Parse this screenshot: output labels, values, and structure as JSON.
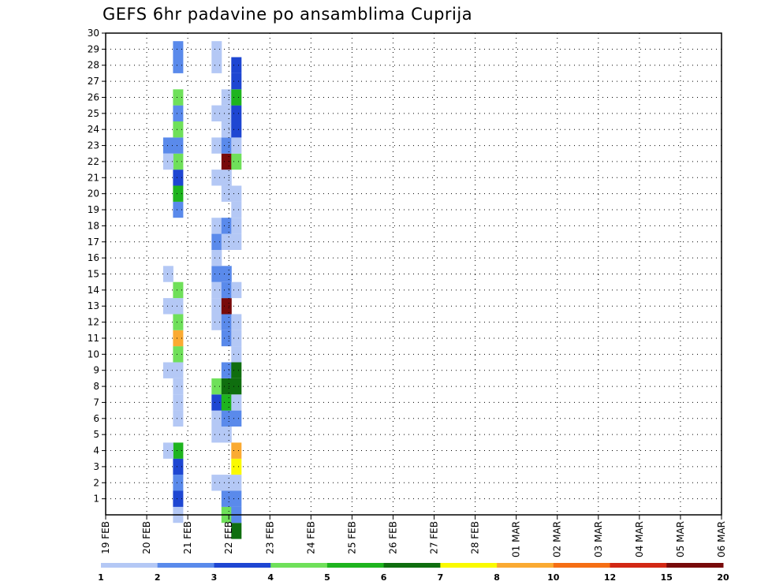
{
  "chart_data": {
    "type": "heatmap",
    "title": "GEFS 6hr padavine po ansamblima Cuprija",
    "x_tick_labels": [
      "19 FEB",
      "20 FEB",
      "21 FEB",
      "22 FEB",
      "23 FEB",
      "24 FEB",
      "25 FEB",
      "26 FEB",
      "27 FEB",
      "28 FEB",
      "01 MAR",
      "02 MAR",
      "03 MAR",
      "04 MAR",
      "05 MAR",
      "06 MAR"
    ],
    "y_tick_labels": [
      "1",
      "2",
      "3",
      "4",
      "5",
      "6",
      "7",
      "8",
      "9",
      "10",
      "11",
      "12",
      "13",
      "14",
      "15",
      "16",
      "17",
      "18",
      "19",
      "20",
      "21",
      "22",
      "23",
      "24",
      "25",
      "26",
      "27",
      "28",
      "29",
      "30"
    ],
    "xlim_days": [
      0,
      15
    ],
    "ylim_members": [
      0,
      30
    ],
    "grid": true,
    "legend": {
      "placement": "bottom",
      "colors": [
        "#b4c8f5",
        "#5a8aeb",
        "#1e46d2",
        "#6fe05a",
        "#1eb41e",
        "#0f6e0f",
        "#fafa00",
        "#faaa32",
        "#f56e14",
        "#d22814",
        "#780a0a"
      ],
      "labels": [
        "1",
        "2",
        "3",
        "4",
        "5",
        "6",
        "7",
        "8",
        "10",
        "12",
        "15",
        "20"
      ]
    },
    "series": [
      {
        "day": 1.64,
        "cells": [
          [
            0,
            1
          ],
          [
            1,
            3
          ],
          [
            2,
            2
          ],
          [
            3,
            3
          ],
          [
            4,
            5
          ],
          [
            6,
            1
          ],
          [
            7,
            1
          ],
          [
            8,
            1
          ],
          [
            9,
            1
          ],
          [
            10,
            4
          ],
          [
            11,
            8
          ],
          [
            12,
            4
          ],
          [
            13,
            1
          ],
          [
            14,
            4
          ],
          [
            19,
            2
          ],
          [
            20,
            5
          ],
          [
            21,
            3
          ],
          [
            22,
            4
          ],
          [
            23,
            2
          ],
          [
            24,
            4
          ],
          [
            25,
            2
          ],
          [
            26,
            4
          ],
          [
            28,
            2
          ],
          [
            29,
            2
          ]
        ]
      },
      {
        "day": 1.4,
        "cells": [
          [
            4,
            1
          ],
          [
            9,
            1
          ],
          [
            13,
            1
          ],
          [
            15,
            1
          ]
        ]
      },
      {
        "day": 1.4,
        "cells": [
          [
            23,
            2
          ],
          [
            22,
            1
          ]
        ]
      },
      {
        "day": 2.58,
        "cells": [
          [
            2,
            1
          ],
          [
            5,
            1
          ],
          [
            6,
            1
          ],
          [
            7,
            3
          ],
          [
            8,
            4
          ],
          [
            12,
            1
          ],
          [
            13,
            1
          ],
          [
            14,
            1
          ],
          [
            15,
            2
          ],
          [
            16,
            1
          ],
          [
            18,
            1
          ],
          [
            21,
            1
          ],
          [
            23,
            1
          ],
          [
            25,
            1
          ],
          [
            28,
            1
          ],
          [
            29,
            1
          ],
          [
            17,
            2
          ]
        ]
      },
      {
        "day": 2.82,
        "cells": [
          [
            0,
            4
          ],
          [
            1,
            2
          ],
          [
            2,
            1
          ],
          [
            5,
            1
          ],
          [
            6,
            2
          ],
          [
            7,
            5
          ],
          [
            8,
            6
          ],
          [
            9,
            2
          ],
          [
            11,
            2
          ],
          [
            12,
            2
          ],
          [
            13,
            11
          ],
          [
            14,
            2
          ],
          [
            15,
            2
          ],
          [
            17,
            1
          ],
          [
            18,
            2
          ],
          [
            20,
            1
          ],
          [
            21,
            1
          ],
          [
            22,
            11
          ],
          [
            23,
            2
          ],
          [
            24,
            1
          ],
          [
            25,
            1
          ],
          [
            26,
            1
          ]
        ]
      },
      {
        "day": 3.06,
        "cells": [
          [
            -1,
            6
          ],
          [
            0,
            2
          ],
          [
            1,
            2
          ],
          [
            2,
            1
          ],
          [
            3,
            7
          ],
          [
            4,
            8
          ],
          [
            6,
            2
          ],
          [
            7,
            1
          ],
          [
            8,
            6
          ],
          [
            9,
            6
          ],
          [
            10,
            1
          ],
          [
            11,
            1
          ],
          [
            12,
            1
          ],
          [
            14,
            1
          ],
          [
            17,
            1
          ],
          [
            18,
            1
          ],
          [
            19,
            1
          ],
          [
            20,
            1
          ],
          [
            22,
            4
          ],
          [
            23,
            1
          ],
          [
            24,
            3
          ],
          [
            25,
            3
          ],
          [
            26,
            5
          ],
          [
            27,
            3
          ],
          [
            28,
            3
          ]
        ]
      }
    ]
  }
}
